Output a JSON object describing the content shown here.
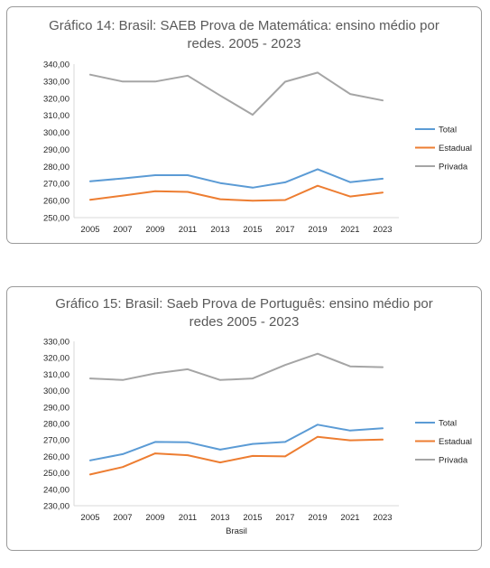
{
  "chart_data": [
    {
      "type": "line",
      "title": "Gráfico 14: Brasil: SAEB Prova de Matemática: ensino médio por redes. 2005 - 2023",
      "title_lines": [
        "Gráfico 14: Brasil: SAEB Prova de Matemática: ensino médio por",
        "redes. 2005 - 2023"
      ],
      "xlabel": "",
      "ylabel": "",
      "categories": [
        "2005",
        "2007",
        "2009",
        "2011",
        "2013",
        "2015",
        "2017",
        "2019",
        "2021",
        "2023"
      ],
      "ylim": [
        250,
        340
      ],
      "ystep": 10,
      "ytick_labels": [
        "250,00",
        "260,00",
        "270,00",
        "280,00",
        "290,00",
        "300,00",
        "310,00",
        "320,00",
        "330,00",
        "340,00"
      ],
      "grid": false,
      "legend": "right",
      "series": [
        {
          "name": "Total",
          "color": "#5b9bd5",
          "values": [
            271.3,
            273.0,
            274.9,
            274.9,
            270.3,
            267.6,
            270.7,
            278.4,
            270.8,
            272.8
          ]
        },
        {
          "name": "Estadual",
          "color": "#ed7d31",
          "values": [
            260.5,
            262.9,
            265.5,
            265.1,
            260.8,
            259.9,
            260.3,
            268.7,
            262.4,
            264.7
          ]
        },
        {
          "name": "Privada",
          "color": "#a5a5a5",
          "values": [
            333.8,
            329.8,
            329.8,
            333.2,
            321.6,
            310.3,
            329.7,
            335.0,
            322.5,
            318.7
          ]
        }
      ]
    },
    {
      "type": "line",
      "title": "Gráfico 15: Brasil: Saeb Prova de Português: ensino médio por redes 2005 - 2023",
      "title_lines": [
        "Gráfico 15: Brasil: Saeb Prova de Português: ensino médio por",
        "redes 2005 - 2023"
      ],
      "xlabel": "Brasil",
      "ylabel": "",
      "categories": [
        "2005",
        "2007",
        "2009",
        "2011",
        "2013",
        "2015",
        "2017",
        "2019",
        "2021",
        "2023"
      ],
      "ylim": [
        230,
        330
      ],
      "ystep": 10,
      "ytick_labels": [
        "230,00",
        "240,00",
        "250,00",
        "260,00",
        "270,00",
        "280,00",
        "290,00",
        "300,00",
        "310,00",
        "320,00",
        "330,00"
      ],
      "grid": false,
      "legend": "right",
      "series": [
        {
          "name": "Total",
          "color": "#5b9bd5",
          "values": [
            257.6,
            261.4,
            268.8,
            268.6,
            264.1,
            267.6,
            268.8,
            279.3,
            275.7,
            277.1
          ]
        },
        {
          "name": "Estadual",
          "color": "#ed7d31",
          "values": [
            249.0,
            253.5,
            261.8,
            260.7,
            256.3,
            260.3,
            260.0,
            271.9,
            269.8,
            270.2
          ]
        },
        {
          "name": "Privada",
          "color": "#a5a5a5",
          "values": [
            307.4,
            306.5,
            310.5,
            313.0,
            306.5,
            307.4,
            315.6,
            322.5,
            314.8,
            314.3
          ]
        }
      ]
    }
  ]
}
